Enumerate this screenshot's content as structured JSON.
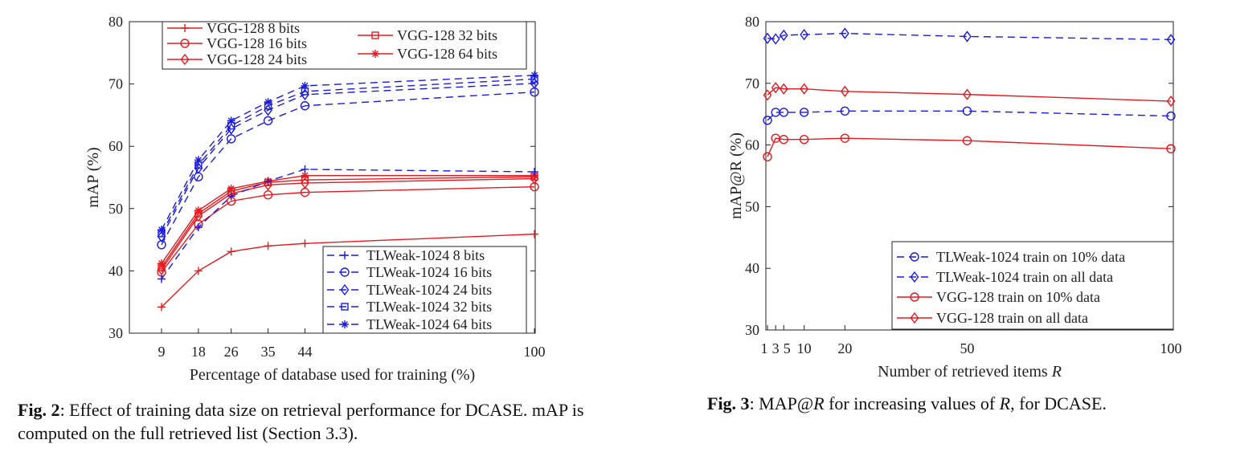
{
  "colors": {
    "vgg": "#e8191e",
    "tlweak": "#1a1ae6"
  },
  "chart_data": [
    {
      "type": "line",
      "xlabel": "Percentage of database used for training (%)",
      "ylabel": "mAP (%)",
      "x": [
        9,
        18,
        26,
        35,
        44,
        100
      ],
      "xticks": [
        "9",
        "18",
        "26",
        "35",
        "44",
        "100"
      ],
      "xlim": [
        0,
        100
      ],
      "ylim": [
        30,
        80
      ],
      "yticks": [
        "30",
        "40",
        "50",
        "60",
        "70",
        "80"
      ],
      "grid": false,
      "legend_placement": [
        "top",
        "bottom-right"
      ],
      "series": [
        {
          "name": "VGG-128 8 bits",
          "group": "vgg",
          "marker": "plus",
          "style": "solid",
          "values": [
            34.2,
            40.0,
            43.1,
            44.0,
            44.4,
            45.9
          ]
        },
        {
          "name": "VGG-128 16 bits",
          "group": "vgg",
          "marker": "circle",
          "style": "solid",
          "values": [
            39.8,
            47.5,
            51.2,
            52.2,
            52.6,
            53.5
          ]
        },
        {
          "name": "VGG-128 24 bits",
          "group": "vgg",
          "marker": "diamond",
          "style": "solid",
          "values": [
            40.2,
            48.8,
            52.4,
            53.8,
            54.1,
            54.8
          ]
        },
        {
          "name": "VGG-128 32 bits",
          "group": "vgg",
          "marker": "square",
          "style": "solid",
          "values": [
            40.6,
            49.2,
            52.8,
            54.2,
            54.6,
            55.1
          ]
        },
        {
          "name": "VGG-128 64 bits",
          "group": "vgg",
          "marker": "star",
          "style": "solid",
          "values": [
            41.2,
            49.7,
            53.2,
            54.4,
            55.3,
            55.3
          ]
        },
        {
          "name": "TLWeak-1024 8 bits",
          "group": "tlweak",
          "marker": "plus",
          "style": "dashed",
          "values": [
            38.7,
            47.0,
            52.0,
            54.4,
            56.3,
            55.9
          ]
        },
        {
          "name": "TLWeak-1024 16 bits",
          "group": "tlweak",
          "marker": "circle",
          "style": "dashed",
          "values": [
            44.2,
            55.1,
            61.2,
            64.1,
            66.5,
            68.7
          ]
        },
        {
          "name": "TLWeak-1024 24 bits",
          "group": "tlweak",
          "marker": "diamond",
          "style": "dashed",
          "values": [
            45.5,
            56.5,
            62.8,
            65.8,
            68.3,
            70.1
          ]
        },
        {
          "name": "TLWeak-1024 32 bits",
          "group": "tlweak",
          "marker": "square",
          "style": "dashed",
          "values": [
            46.0,
            57.0,
            63.3,
            66.5,
            68.8,
            70.8
          ]
        },
        {
          "name": "TLWeak-1024 64 bits",
          "group": "tlweak",
          "marker": "star",
          "style": "dashed",
          "values": [
            46.6,
            57.8,
            64.1,
            67.1,
            69.7,
            71.4
          ]
        }
      ],
      "caption": {
        "label": "Fig. 2",
        "text": ":  Effect of training data size on retrieval performance for DCASE. mAP is computed on the full retrieved list (Section 3.3)."
      }
    },
    {
      "type": "line",
      "xlabel": "Number of retrieved items ",
      "xlabel_var": "R",
      "ylabel": "mAP@R (%)",
      "x": [
        1,
        3,
        5,
        10,
        20,
        50,
        100
      ],
      "xticks": [
        "1",
        "3",
        "5",
        "10",
        "20",
        "50",
        "100"
      ],
      "xlim": [
        1,
        100
      ],
      "ylim": [
        30,
        80
      ],
      "yticks": [
        "30",
        "40",
        "50",
        "60",
        "70",
        "80"
      ],
      "grid": false,
      "legend_placement": "bottom-right",
      "series": [
        {
          "name": "TLWeak-1024 train on 10% data",
          "group": "tlweak",
          "marker": "circle",
          "style": "dashed",
          "values": [
            64.0,
            65.3,
            65.3,
            65.3,
            65.5,
            65.5,
            64.7
          ]
        },
        {
          "name": "TLWeak-1024 train on all data",
          "group": "tlweak",
          "marker": "diamond",
          "style": "dashed",
          "values": [
            77.3,
            77.2,
            77.8,
            77.9,
            78.1,
            77.6,
            77.1
          ]
        },
        {
          "name": "VGG-128 train on 10% data",
          "group": "vgg",
          "marker": "circle",
          "style": "solid",
          "values": [
            58.1,
            61.1,
            60.9,
            60.9,
            61.1,
            60.7,
            59.4
          ]
        },
        {
          "name": "VGG-128 train on all data",
          "group": "vgg",
          "marker": "diamond",
          "style": "solid",
          "values": [
            68.1,
            69.3,
            69.1,
            69.1,
            68.7,
            68.2,
            67.1
          ]
        }
      ],
      "caption": {
        "label": "Fig. 3",
        "text_a": ": MAP@",
        "var": "R",
        "text_b": " for increasing values of ",
        "var2": "R",
        "text_c": ", for DCASE."
      }
    }
  ]
}
